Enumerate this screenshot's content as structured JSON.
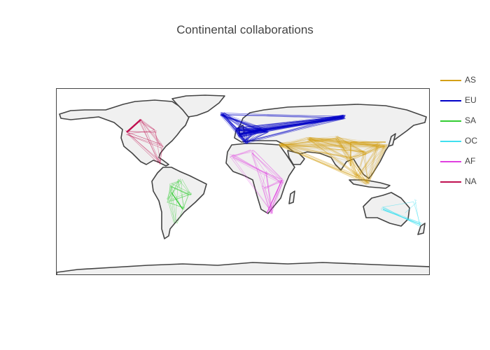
{
  "title": "Continental collaborations",
  "legend": [
    {
      "label": "AS",
      "color": "#d4a017"
    },
    {
      "label": "EU",
      "color": "#0000c8"
    },
    {
      "label": "SA",
      "color": "#32cd32"
    },
    {
      "label": "OC",
      "color": "#40e0f0"
    },
    {
      "label": "AF",
      "color": "#e040e0"
    },
    {
      "label": "NA",
      "color": "#c01050"
    }
  ],
  "map": {
    "projection": "equirectangular",
    "land_color": "#f0f0f0",
    "coast_color": "#444444",
    "frame_color": "#444444"
  }
}
